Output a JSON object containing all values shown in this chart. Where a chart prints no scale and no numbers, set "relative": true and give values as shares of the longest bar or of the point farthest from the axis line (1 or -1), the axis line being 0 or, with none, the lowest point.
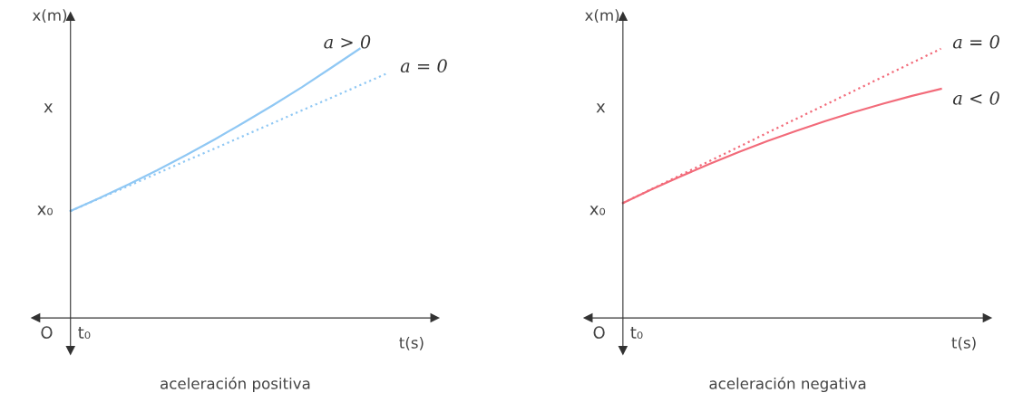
{
  "chart_data": [
    {
      "type": "line",
      "relative": true,
      "title": "aceleración positiva",
      "xlabel": "t(s)",
      "ylabel": "x(m)",
      "legend": false,
      "annotations": [
        "x₀",
        "x",
        "t₀",
        "O"
      ],
      "categories": [
        null,
        null,
        null,
        null,
        null,
        null,
        null,
        null,
        null,
        null,
        null,
        null
      ],
      "series": [
        {
          "name": "a > 0",
          "color": "#90c8f4",
          "line_style": "solid",
          "values": [
            0.397,
            0.445,
            0.496,
            0.549,
            0.605,
            0.664,
            0.726,
            0.79,
            0.857,
            0.928,
            1.0,
            null
          ]
        },
        {
          "name": "a = 0",
          "color": "#90c8f4",
          "line_style": "dotted",
          "values": [
            0.397,
            0.444,
            0.49,
            0.537,
            0.584,
            0.63,
            0.677,
            0.724,
            0.771,
            0.817,
            0.864,
            0.911
          ]
        }
      ]
    },
    {
      "type": "line",
      "relative": true,
      "title": "aceleración negativa",
      "xlabel": "t(s)",
      "ylabel": "x(m)",
      "legend": false,
      "annotations": [
        "x₀",
        "x",
        "t₀",
        "O"
      ],
      "categories": [
        null,
        null,
        null,
        null,
        null,
        null,
        null,
        null,
        null,
        null,
        null,
        null
      ],
      "series": [
        {
          "name": "a < 0",
          "color": "#f26b7a",
          "line_style": "solid",
          "values": [
            0.427,
            0.478,
            0.526,
            0.572,
            0.616,
            0.657,
            0.695,
            0.731,
            0.765,
            0.796,
            0.825,
            0.851
          ]
        },
        {
          "name": "a = 0",
          "color": "#f26b7a",
          "line_style": "dotted",
          "values": [
            0.427,
            0.479,
            0.531,
            0.583,
            0.635,
            0.688,
            0.74,
            0.792,
            0.844,
            0.896,
            0.948,
            1.0
          ]
        }
      ]
    }
  ]
}
